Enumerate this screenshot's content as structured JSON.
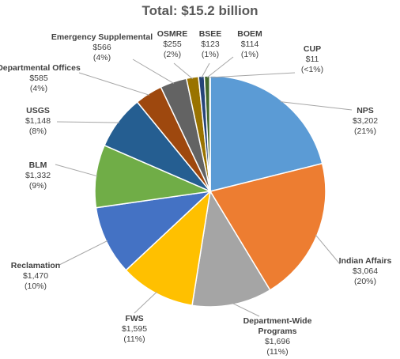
{
  "chart_data": {
    "type": "pie",
    "title": "Total: $15.2 billion",
    "slices": [
      {
        "name": "NPS",
        "value": 3202,
        "value_label": "$3,202",
        "percent_label": "(21%)",
        "color": "#5B9BD5"
      },
      {
        "name": "Indian Affairs",
        "value": 3064,
        "value_label": "$3,064",
        "percent_label": "(20%)",
        "color": "#ED7D31"
      },
      {
        "name": "Department-Wide Programs",
        "value": 1696,
        "value_label": "$1,696",
        "percent_label": "(11%)",
        "color": "#A5A5A5"
      },
      {
        "name": "FWS",
        "value": 1595,
        "value_label": "$1,595",
        "percent_label": "(11%)",
        "color": "#FFC000"
      },
      {
        "name": "Reclamation",
        "value": 1470,
        "value_label": "$1,470",
        "percent_label": "(10%)",
        "color": "#4472C4"
      },
      {
        "name": "BLM",
        "value": 1332,
        "value_label": "$1,332",
        "percent_label": "(9%)",
        "color": "#70AD47"
      },
      {
        "name": "USGS",
        "value": 1148,
        "value_label": "$1,148",
        "percent_label": "(8%)",
        "color": "#255E91"
      },
      {
        "name": "Departmental Offices",
        "value": 585,
        "value_label": "$585",
        "percent_label": "(4%)",
        "color": "#9E480E"
      },
      {
        "name": "Emergency Supplemental",
        "value": 566,
        "value_label": "$566",
        "percent_label": "(4%)",
        "color": "#636363"
      },
      {
        "name": "OSMRE",
        "value": 255,
        "value_label": "$255",
        "percent_label": "(2%)",
        "color": "#997300"
      },
      {
        "name": "BSEE",
        "value": 123,
        "value_label": "$123",
        "percent_label": "(1%)",
        "color": "#264478"
      },
      {
        "name": "BOEM",
        "value": 114,
        "value_label": "$114",
        "percent_label": "(1%)",
        "color": "#43682B"
      },
      {
        "name": "CUP",
        "value": 11,
        "value_label": "$11",
        "percent_label": "(<1%)",
        "color": "#698ED0"
      }
    ]
  }
}
